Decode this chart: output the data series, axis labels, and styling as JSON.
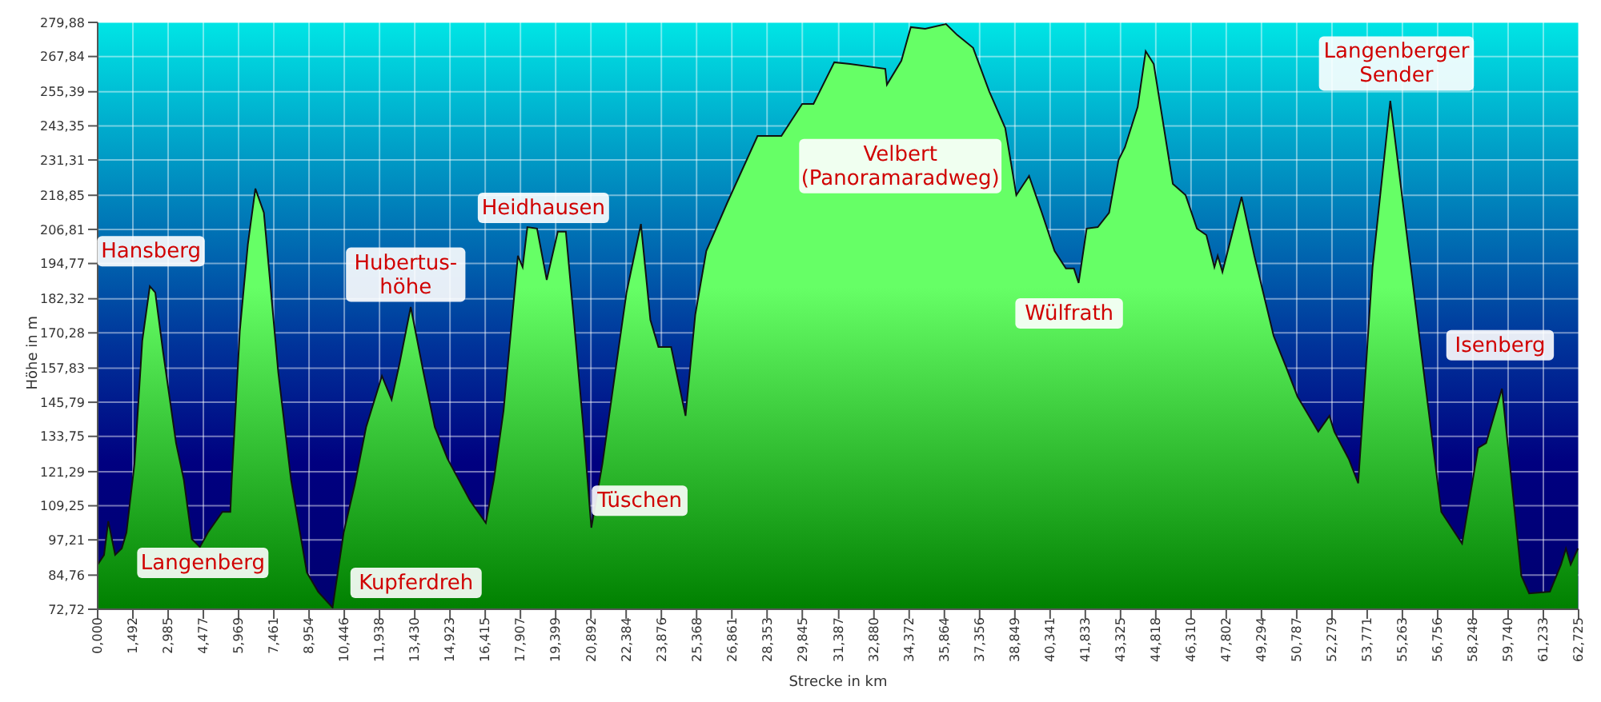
{
  "chart_data": {
    "type": "area",
    "xlabel": "Strecke in km",
    "ylabel": "Höhe in m",
    "x": [
      0,
      0.27,
      0.45,
      0.74,
      1.02,
      1.22,
      1.56,
      1.89,
      2.21,
      2.44,
      2.77,
      3.32,
      3.65,
      3.99,
      4.33,
      4.67,
      5.28,
      5.62,
      5.68,
      6.02,
      6.36,
      6.68,
      7.04,
      7.65,
      8.19,
      8.86,
      9.34,
      9.95,
      10.42,
      10.89,
      11.37,
      12.04,
      12.45,
      12.79,
      13.26,
      13.8,
      14.28,
      14.82,
      15.77,
      16.44,
      16.78,
      17.19,
      17.8,
      18.0,
      18.2,
      18.61,
      19.02,
      19.49,
      19.83,
      20.17,
      20.57,
      20.91,
      21.38,
      21.92,
      22.4,
      23.01,
      23.41,
      23.75,
      24.29,
      24.9,
      25.31,
      25.78,
      26.66,
      27.95,
      28.96,
      29.84,
      30.32,
      31.2,
      31.87,
      33.36,
      33.43,
      34.04,
      34.44,
      35.05,
      35.93,
      36.41,
      37.08,
      37.76,
      38.44,
      38.91,
      39.45,
      39.99,
      40.53,
      41.01,
      41.35,
      41.55,
      41.89,
      42.36,
      42.84,
      43.24,
      43.51,
      44.05,
      44.39,
      44.73,
      45.54,
      46.08,
      46.56,
      46.96,
      47.3,
      47.44,
      47.64,
      48.45,
      48.99,
      49.81,
      50.35,
      50.82,
      51.7,
      52.17,
      52.38,
      52.99,
      53.39,
      54.0,
      54.75,
      55.56,
      56.23,
      56.91,
      57.79,
      58.47,
      58.81,
      59.48,
      60.3,
      60.63,
      61.51,
      61.98,
      62.19,
      62.39,
      62.7
    ],
    "series": [
      {
        "color": "#66ff66",
        "values": [
          88.5,
          91.9,
          103.8,
          91.9,
          94.2,
          99.8,
          124.1,
          167.5,
          186.7,
          184.5,
          163.6,
          131.4,
          118.4,
          97.5,
          94.7,
          99.8,
          107.1,
          107.1,
          118.4,
          170.9,
          201.4,
          221.2,
          212.7,
          156.3,
          118.4,
          85.7,
          78.9,
          73.3,
          99.8,
          116.7,
          137.0,
          155.1,
          146.7,
          159.6,
          179.4,
          156.3,
          137.0,
          125.8,
          111.1,
          103.2,
          118.4,
          142.7,
          197.5,
          193.5,
          207.6,
          207.1,
          189.0,
          206.0,
          206.0,
          174.9,
          137.0,
          101.5,
          124.1,
          156.3,
          184.5,
          208.7,
          174.9,
          165.3,
          165.3,
          141.0,
          176.6,
          199.2,
          216.1,
          239.8,
          239.8,
          251.1,
          251.1,
          265.8,
          265.2,
          263.5,
          257.9,
          266.3,
          278.2,
          277.6,
          279.3,
          275.4,
          270.9,
          255.6,
          242.6,
          218.9,
          225.7,
          212.7,
          199.2,
          193.0,
          193.0,
          187.9,
          207.1,
          207.6,
          212.7,
          231.3,
          235.8,
          250.0,
          269.7,
          265.2,
          222.9,
          218.9,
          207.1,
          204.8,
          193.5,
          197.5,
          191.8,
          218.3,
          197.5,
          169.2,
          157.9,
          147.8,
          135.4,
          141.0,
          135.4,
          125.8,
          117.2,
          193.5,
          252.2,
          197.5,
          152.3,
          107.1,
          95.9,
          129.7,
          131.4,
          150.6,
          84.6,
          78.3,
          78.9,
          88.5,
          94.2,
          88.5,
          94.2
        ]
      }
    ],
    "xlim": [
      0,
      62.725
    ],
    "xticks": [
      {
        "value": 0,
        "label": "0,000"
      },
      {
        "value": 1.492,
        "label": "1,492"
      },
      {
        "value": 2.985,
        "label": "2,985"
      },
      {
        "value": 4.477,
        "label": "4,477"
      },
      {
        "value": 5.969,
        "label": "5,969"
      },
      {
        "value": 7.461,
        "label": "7,461"
      },
      {
        "value": 8.954,
        "label": "8,954"
      },
      {
        "value": 10.446,
        "label": "10,446"
      },
      {
        "value": 11.938,
        "label": "11,938"
      },
      {
        "value": 13.43,
        "label": "13,430"
      },
      {
        "value": 14.923,
        "label": "14,923"
      },
      {
        "value": 16.415,
        "label": "16,415"
      },
      {
        "value": 17.907,
        "label": "17,907"
      },
      {
        "value": 19.399,
        "label": "19,399"
      },
      {
        "value": 20.892,
        "label": "20,892"
      },
      {
        "value": 22.384,
        "label": "22,384"
      },
      {
        "value": 23.876,
        "label": "23,876"
      },
      {
        "value": 25.368,
        "label": "25,368"
      },
      {
        "value": 26.861,
        "label": "26,861"
      },
      {
        "value": 28.353,
        "label": "28,353"
      },
      {
        "value": 29.845,
        "label": "29,845"
      },
      {
        "value": 31.387,
        "label": "31,387"
      },
      {
        "value": 32.88,
        "label": "32,880"
      },
      {
        "value": 34.372,
        "label": "34,372"
      },
      {
        "value": 35.864,
        "label": "35,864"
      },
      {
        "value": 37.356,
        "label": "37,356"
      },
      {
        "value": 38.849,
        "label": "38,849"
      },
      {
        "value": 40.341,
        "label": "40,341"
      },
      {
        "value": 41.833,
        "label": "41,833"
      },
      {
        "value": 43.325,
        "label": "43,325"
      },
      {
        "value": 44.818,
        "label": "44,818"
      },
      {
        "value": 46.31,
        "label": "46,310"
      },
      {
        "value": 47.802,
        "label": "47,802"
      },
      {
        "value": 49.294,
        "label": "49,294"
      },
      {
        "value": 50.787,
        "label": "50,787"
      },
      {
        "value": 52.279,
        "label": "52,279"
      },
      {
        "value": 53.771,
        "label": "53,771"
      },
      {
        "value": 55.263,
        "label": "55,263"
      },
      {
        "value": 56.756,
        "label": "56,756"
      },
      {
        "value": 58.248,
        "label": "58,248"
      },
      {
        "value": 59.74,
        "label": "59,740"
      },
      {
        "value": 61.233,
        "label": "61,233"
      },
      {
        "value": 62.725,
        "label": "62,725"
      }
    ],
    "ylim": [
      72.72,
      279.88
    ],
    "yticks": [
      {
        "value": 72.72,
        "label": "72,72"
      },
      {
        "value": 84.76,
        "label": "84,76"
      },
      {
        "value": 97.21,
        "label": "97,21"
      },
      {
        "value": 109.25,
        "label": "109,25"
      },
      {
        "value": 121.29,
        "label": "121,29"
      },
      {
        "value": 133.75,
        "label": "133,75"
      },
      {
        "value": 145.79,
        "label": "145,79"
      },
      {
        "value": 157.83,
        "label": "157,83"
      },
      {
        "value": 170.28,
        "label": "170,28"
      },
      {
        "value": 182.32,
        "label": "182,32"
      },
      {
        "value": 194.77,
        "label": "194,77"
      },
      {
        "value": 206.81,
        "label": "206,81"
      },
      {
        "value": 218.85,
        "label": "218,85"
      },
      {
        "value": 231.31,
        "label": "231,31"
      },
      {
        "value": 243.35,
        "label": "243,35"
      },
      {
        "value": 255.39,
        "label": "255,39"
      },
      {
        "value": 267.84,
        "label": "267,84"
      },
      {
        "value": 279.88,
        "label": "279,88"
      }
    ],
    "grid": true,
    "legend": false,
    "annotations": [
      "Hansberg",
      "Langenberg",
      "Kupferdreh",
      "Hubertus-\nhöhe",
      "Heidhausen",
      "Tüschen",
      "Velbert\n(Panoramaradweg)",
      "Wülfrath",
      "Langenberger\nSender",
      "Isenberg"
    ]
  }
}
